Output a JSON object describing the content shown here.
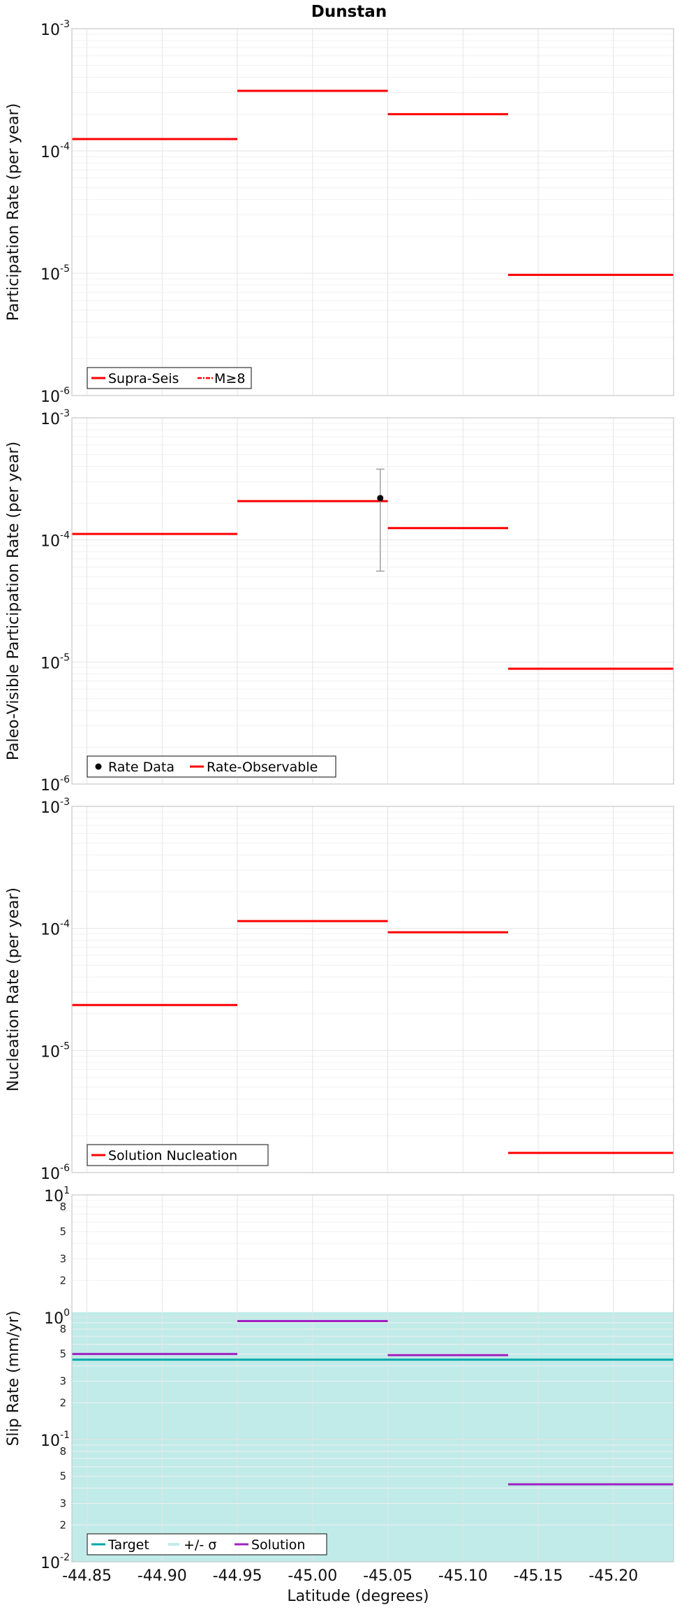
{
  "title": "Dunstan",
  "xlabel": "Latitude (degrees)",
  "colors": {
    "rate": "#ff0000",
    "target": "#00a8a8",
    "sigma_band": "#c0ebe9",
    "solution": "#a020c0",
    "error_bar": "#a0a0a0",
    "data_point": "#000000"
  },
  "chart_data": [
    {
      "type": "line",
      "ylabel": "Participation Rate (per year)",
      "xlim": [
        -44.84,
        -45.24
      ],
      "ylim": [
        1e-06,
        0.001
      ],
      "yscale": "log",
      "grid": true,
      "legend_position": "bottom-left",
      "legend": [
        "Supra-Seis",
        "M≥8"
      ],
      "series": [
        {
          "name": "Supra-Seis",
          "segments": [
            {
              "x": [
                -44.84,
                -44.95
              ],
              "y": 0.000125
            },
            {
              "x": [
                -44.95,
                -45.05
              ],
              "y": 0.00031
            },
            {
              "x": [
                -45.05,
                -45.13
              ],
              "y": 0.0002
            },
            {
              "x": [
                -45.13,
                -45.24
              ],
              "y": 9.7e-06
            }
          ]
        },
        {
          "name": "M≥8",
          "segments": []
        }
      ]
    },
    {
      "type": "line",
      "ylabel": "Paleo-Visible Participation Rate (per year)",
      "xlim": [
        -44.84,
        -45.24
      ],
      "ylim": [
        1e-06,
        0.001
      ],
      "yscale": "log",
      "grid": true,
      "legend_position": "bottom-left",
      "legend": [
        "Rate Data",
        "Rate-Observable"
      ],
      "series": [
        {
          "name": "Rate-Observable",
          "segments": [
            {
              "x": [
                -44.84,
                -44.95
              ],
              "y": 0.000112
            },
            {
              "x": [
                -44.95,
                -45.05
              ],
              "y": 0.000208
            },
            {
              "x": [
                -45.05,
                -45.13
              ],
              "y": 0.000125
            },
            {
              "x": [
                -45.13,
                -45.24
              ],
              "y": 8.8e-06
            }
          ]
        }
      ],
      "points": [
        {
          "name": "Rate Data",
          "x": -45.045,
          "y": 0.00022,
          "ymin": 5.55e-05,
          "ymax": 0.00038
        }
      ]
    },
    {
      "type": "line",
      "ylabel": "Nucleation Rate (per year)",
      "xlim": [
        -44.84,
        -45.24
      ],
      "ylim": [
        1e-06,
        0.001
      ],
      "yscale": "log",
      "grid": true,
      "legend_position": "bottom-left",
      "legend": [
        "Solution Nucleation"
      ],
      "series": [
        {
          "name": "Solution Nucleation",
          "segments": [
            {
              "x": [
                -44.84,
                -44.95
              ],
              "y": 2.36e-05
            },
            {
              "x": [
                -44.95,
                -45.05
              ],
              "y": 0.000115
            },
            {
              "x": [
                -45.05,
                -45.13
              ],
              "y": 9.3e-05
            },
            {
              "x": [
                -45.13,
                -45.24
              ],
              "y": 1.45e-06
            }
          ]
        }
      ]
    },
    {
      "type": "line",
      "ylabel": "Slip Rate (mm/yr)",
      "xlim": [
        -44.84,
        -45.24
      ],
      "ylim": [
        0.01,
        10
      ],
      "yscale": "log",
      "grid": true,
      "legend_position": "bottom-left",
      "legend": [
        "Target",
        "+/- σ",
        "Solution"
      ],
      "band": {
        "name": "+/- σ",
        "ymin": 0.01,
        "ymax": 1.1
      },
      "target": {
        "name": "Target",
        "y": 0.45
      },
      "series": [
        {
          "name": "Solution",
          "segments": [
            {
              "x": [
                -44.84,
                -44.95
              ],
              "y": 0.5
            },
            {
              "x": [
                -44.95,
                -45.05
              ],
              "y": 0.93
            },
            {
              "x": [
                -45.05,
                -45.13
              ],
              "y": 0.49
            },
            {
              "x": [
                -45.13,
                -45.24
              ],
              "y": 0.043
            }
          ]
        }
      ]
    }
  ],
  "x_ticks": [
    "-44.85",
    "-44.90",
    "-44.95",
    "-45.00",
    "-45.05",
    "-45.10",
    "-45.15",
    "-45.20"
  ],
  "x_tick_values": [
    -44.85,
    -44.9,
    -44.95,
    -45.0,
    -45.05,
    -45.1,
    -45.15,
    -45.2
  ],
  "rate_y_ticks": [
    {
      "base": "10",
      "exp": "-3"
    },
    {
      "base": "10",
      "exp": "-4"
    },
    {
      "base": "10",
      "exp": "-5"
    },
    {
      "base": "10",
      "exp": "-6"
    }
  ],
  "slip_y_ticks": [
    {
      "base": "10",
      "exp": "1"
    },
    {
      "base": "10",
      "exp": "0"
    },
    {
      "base": "10",
      "exp": "-1"
    },
    {
      "base": "10",
      "exp": "-2"
    }
  ],
  "slip_minor_labels": [
    "8",
    "5",
    "3",
    "2"
  ]
}
